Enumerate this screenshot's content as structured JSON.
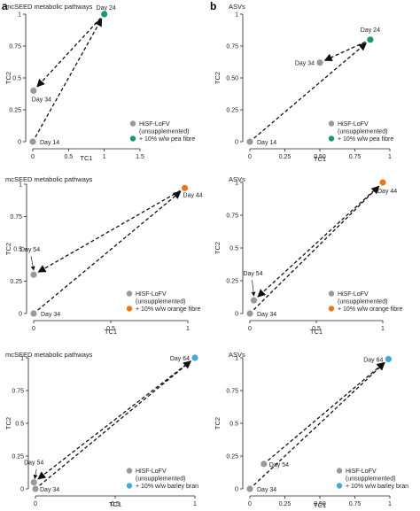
{
  "panel_labels": [
    "a",
    "b"
  ],
  "colors": {
    "unsupplemented": "#999999",
    "pea": "#1a9a6c",
    "orange": "#e6781e",
    "barley": "#4aa7dd"
  },
  "chart_data": [
    {
      "id": "a1",
      "type": "scatter",
      "title": "mcSEED metabolic pathways",
      "xlabel": "TC1",
      "ylabel": "TC2",
      "xlim": [
        0,
        1.5
      ],
      "ylim": [
        0,
        1
      ],
      "xticks": [
        0,
        0.5,
        1,
        1.5
      ],
      "xtick_labels": [
        "0",
        "0.5",
        "1",
        "1.5"
      ],
      "yticks": [
        0,
        0.25,
        0.5,
        0.75,
        1
      ],
      "ytick_labels": [
        "0",
        "0.25",
        "0.5",
        "0.75",
        "1"
      ],
      "legend": [
        "HiSF-LoFV\n(unsupplemented)",
        "+ 10% w/w pea fibre"
      ],
      "legend_colors": [
        "#999999",
        "#1a9a6c"
      ],
      "points": [
        {
          "label": "Day 14",
          "x": 0,
          "y": 0,
          "color": "#999999"
        },
        {
          "label": "Day 24",
          "x": 1,
          "y": 1,
          "color": "#1a9a6c"
        },
        {
          "label": "Day 34",
          "x": 0.01,
          "y": 0.4,
          "color": "#999999"
        }
      ],
      "arrows": [
        [
          0,
          1
        ],
        [
          1,
          2
        ]
      ]
    },
    {
      "id": "b1",
      "type": "scatter",
      "title": "ASVs",
      "xlabel": "TC1",
      "ylabel": "TC2",
      "xlim": [
        0,
        1
      ],
      "ylim": [
        0,
        1
      ],
      "xticks": [
        0,
        0.25,
        0.5,
        0.75,
        1
      ],
      "xtick_labels": [
        "0",
        "0.25",
        "0.50",
        "0.75",
        "1"
      ],
      "yticks": [
        0,
        0.25,
        0.5,
        0.75,
        1
      ],
      "ytick_labels": [
        "0",
        "0.25",
        "0.50",
        "0.75",
        "1"
      ],
      "legend": [
        "HiSF-LoFV\n(unsupplemented)",
        "+ 10% w/w pea fibre"
      ],
      "legend_colors": [
        "#999999",
        "#1a9a6c"
      ],
      "points": [
        {
          "label": "Day 14",
          "x": 0,
          "y": 0,
          "color": "#999999"
        },
        {
          "label": "Day 24",
          "x": 0.86,
          "y": 0.8,
          "color": "#1a9a6c"
        },
        {
          "label": "Day 34",
          "x": 0.5,
          "y": 0.62,
          "color": "#999999"
        }
      ],
      "arrows": [
        [
          0,
          1
        ],
        [
          1,
          2
        ]
      ]
    },
    {
      "id": "a2",
      "type": "scatter",
      "title": "mcSEED metabolic pathways",
      "xlabel": "TC1",
      "ylabel": "TC2",
      "xlim": [
        0,
        1
      ],
      "ylim": [
        0,
        1
      ],
      "xticks": [
        0,
        0.5,
        1
      ],
      "xtick_labels": [
        "0",
        "0.5",
        "1"
      ],
      "yticks": [
        0,
        0.25,
        0.5,
        0.75,
        1
      ],
      "ytick_labels": [
        "0",
        "0.25",
        "0.5",
        "0.75",
        "1"
      ],
      "legend": [
        "HiSF-LoFV\n(unsupplemented)",
        "+ 10% w/w orange fibre"
      ],
      "legend_colors": [
        "#999999",
        "#e6781e"
      ],
      "points": [
        {
          "label": "Day 34",
          "x": 0,
          "y": 0,
          "color": "#999999"
        },
        {
          "label": "Day 44",
          "x": 0.98,
          "y": 0.97,
          "color": "#e6781e"
        },
        {
          "label": "Day 54",
          "x": 0,
          "y": 0.3,
          "color": "#999999"
        }
      ],
      "arrows": [
        [
          0,
          1
        ],
        [
          1,
          2
        ]
      ]
    },
    {
      "id": "b2",
      "type": "scatter",
      "title": "ASVs",
      "xlabel": "TC1",
      "ylabel": "TC2",
      "xlim": [
        0,
        1
      ],
      "ylim": [
        0,
        1
      ],
      "xticks": [
        0,
        0.5,
        1
      ],
      "xtick_labels": [
        "0",
        "0.5",
        "1"
      ],
      "yticks": [
        0,
        0.25,
        0.5,
        0.75,
        1
      ],
      "ytick_labels": [
        "0",
        "0.25",
        "0.5",
        "0.75",
        "1"
      ],
      "legend": [
        "HiSF-LoFV\n(unsupplemented)",
        "+ 10% w/w orange fibre"
      ],
      "legend_colors": [
        "#999999",
        "#e6781e"
      ],
      "points": [
        {
          "label": "Day 34",
          "x": 0,
          "y": 0,
          "color": "#999999"
        },
        {
          "label": "Day 44",
          "x": 1,
          "y": 1,
          "color": "#e6781e"
        },
        {
          "label": "Day 54",
          "x": 0.03,
          "y": 0.1,
          "color": "#999999"
        }
      ],
      "arrows": [
        [
          0,
          1
        ],
        [
          1,
          2
        ]
      ]
    },
    {
      "id": "a3",
      "type": "scatter",
      "title": "mcSEED metabolic pathways",
      "xlabel": "TC1",
      "ylabel": "TC2",
      "xlim": [
        0,
        1
      ],
      "ylim": [
        0,
        1
      ],
      "xticks": [
        0,
        0.5,
        1
      ],
      "xtick_labels": [
        "0",
        "0.5",
        "1"
      ],
      "yticks": [
        0,
        0.25,
        0.5,
        0.75,
        1
      ],
      "ytick_labels": [
        "0",
        "0.25",
        "0.5",
        "0.75",
        "1"
      ],
      "legend": [
        "HiSF-LoFV\n(unsupplemented)",
        "+ 10% w/w barley bran"
      ],
      "legend_colors": [
        "#999999",
        "#4aa7dd"
      ],
      "points": [
        {
          "label": "Day 34",
          "x": 0,
          "y": 0,
          "color": "#999999"
        },
        {
          "label": "Day 64",
          "x": 1,
          "y": 1,
          "color": "#4aa7dd"
        },
        {
          "label": "Day 54",
          "x": -0.01,
          "y": 0.05,
          "color": "#999999"
        }
      ],
      "arrows": [
        [
          0,
          1
        ],
        [
          1,
          2
        ]
      ]
    },
    {
      "id": "b3",
      "type": "scatter",
      "title": "ASVs",
      "xlabel": "TC1",
      "ylabel": "TC2",
      "xlim": [
        0,
        1
      ],
      "ylim": [
        0,
        1
      ],
      "xticks": [
        0,
        0.25,
        0.5,
        0.75,
        1
      ],
      "xtick_labels": [
        "0",
        "0.25",
        "0.50",
        "0.75",
        "1"
      ],
      "yticks": [
        0,
        0.25,
        0.5,
        0.75,
        1
      ],
      "ytick_labels": [
        "0",
        "0.25",
        "0.5",
        "0.75",
        "1"
      ],
      "legend": [
        "HiSF-LoFV\n(unsupplemented)",
        "+ 10% w/w barley bran"
      ],
      "legend_colors": [
        "#999999",
        "#4aa7dd"
      ],
      "points": [
        {
          "label": "Day 34",
          "x": 0,
          "y": 0,
          "color": "#999999"
        },
        {
          "label": "Day 64",
          "x": 0.99,
          "y": 0.99,
          "color": "#4aa7dd"
        },
        {
          "label": "Day 54",
          "x": 0.1,
          "y": 0.19,
          "color": "#999999"
        }
      ],
      "arrows": [
        [
          0,
          1
        ],
        [
          2,
          1
        ]
      ]
    }
  ]
}
